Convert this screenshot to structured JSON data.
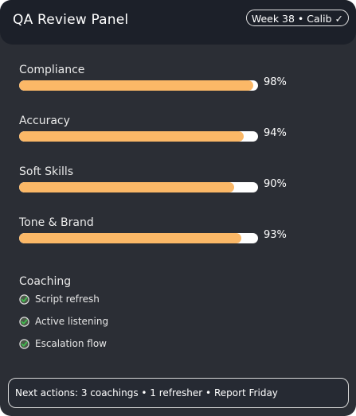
{
  "header": {
    "title": "QA Review Panel",
    "badge": "Week 38 • Calib ✓"
  },
  "metrics": [
    {
      "label": "Compliance",
      "value_text": "98%",
      "value": 98
    },
    {
      "label": "Accuracy",
      "value_text": "94%",
      "value": 94
    },
    {
      "label": "Soft Skills",
      "value_text": "90%",
      "value": 90
    },
    {
      "label": "Tone & Brand",
      "value_text": "93%",
      "value": 93
    }
  ],
  "coaching": {
    "title": "Coaching",
    "items": [
      {
        "label": "Script refresh",
        "icon": "check-circle-icon"
      },
      {
        "label": "Active listening",
        "icon": "check-circle-icon"
      },
      {
        "label": "Escalation flow",
        "icon": "check-circle-icon"
      }
    ]
  },
  "footer": {
    "text": "Next actions: 3 coachings • 1 refresher • Report Friday"
  },
  "colors": {
    "panel_bg": "#2b2e35",
    "header_bg": "#1c2029",
    "bar_fill": "#fbb867",
    "bar_track": "#ffffff",
    "check_green": "#3fbf4f"
  }
}
